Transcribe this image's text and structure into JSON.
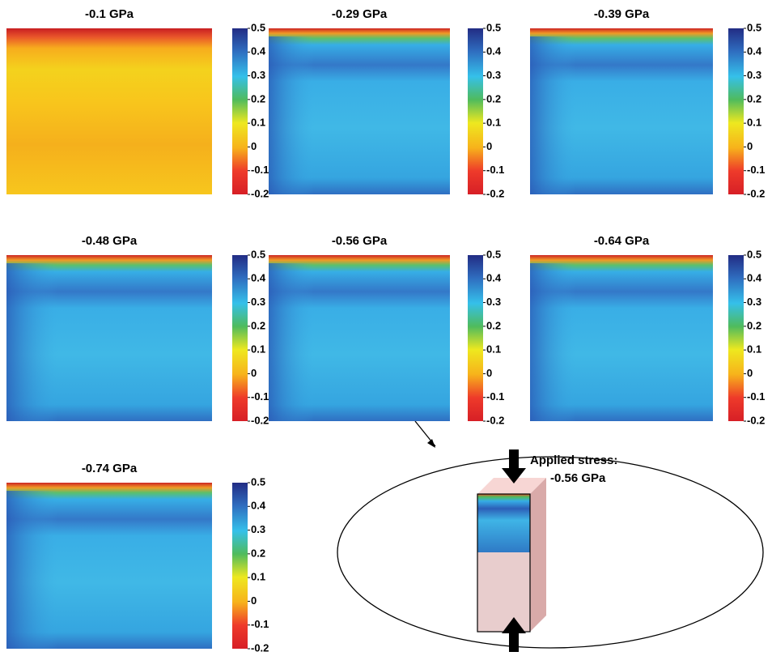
{
  "panels": [
    {
      "title": "-0.1 GPa"
    },
    {
      "title": "-0.29 GPa"
    },
    {
      "title": "-0.39 GPa"
    },
    {
      "title": "-0.48 GPa"
    },
    {
      "title": "-0.56 GPa"
    },
    {
      "title": "-0.64 GPa"
    },
    {
      "title": "-0.74 GPa"
    }
  ],
  "colorbar": {
    "lim": [
      -0.2,
      0.5
    ],
    "ticks": [
      0.5,
      0.4,
      0.3,
      0.2,
      0.1,
      0,
      -0.1,
      -0.2
    ]
  },
  "inset": {
    "label_line1": "Applied stress:",
    "label_line2": "-0.56 GPa"
  }
}
